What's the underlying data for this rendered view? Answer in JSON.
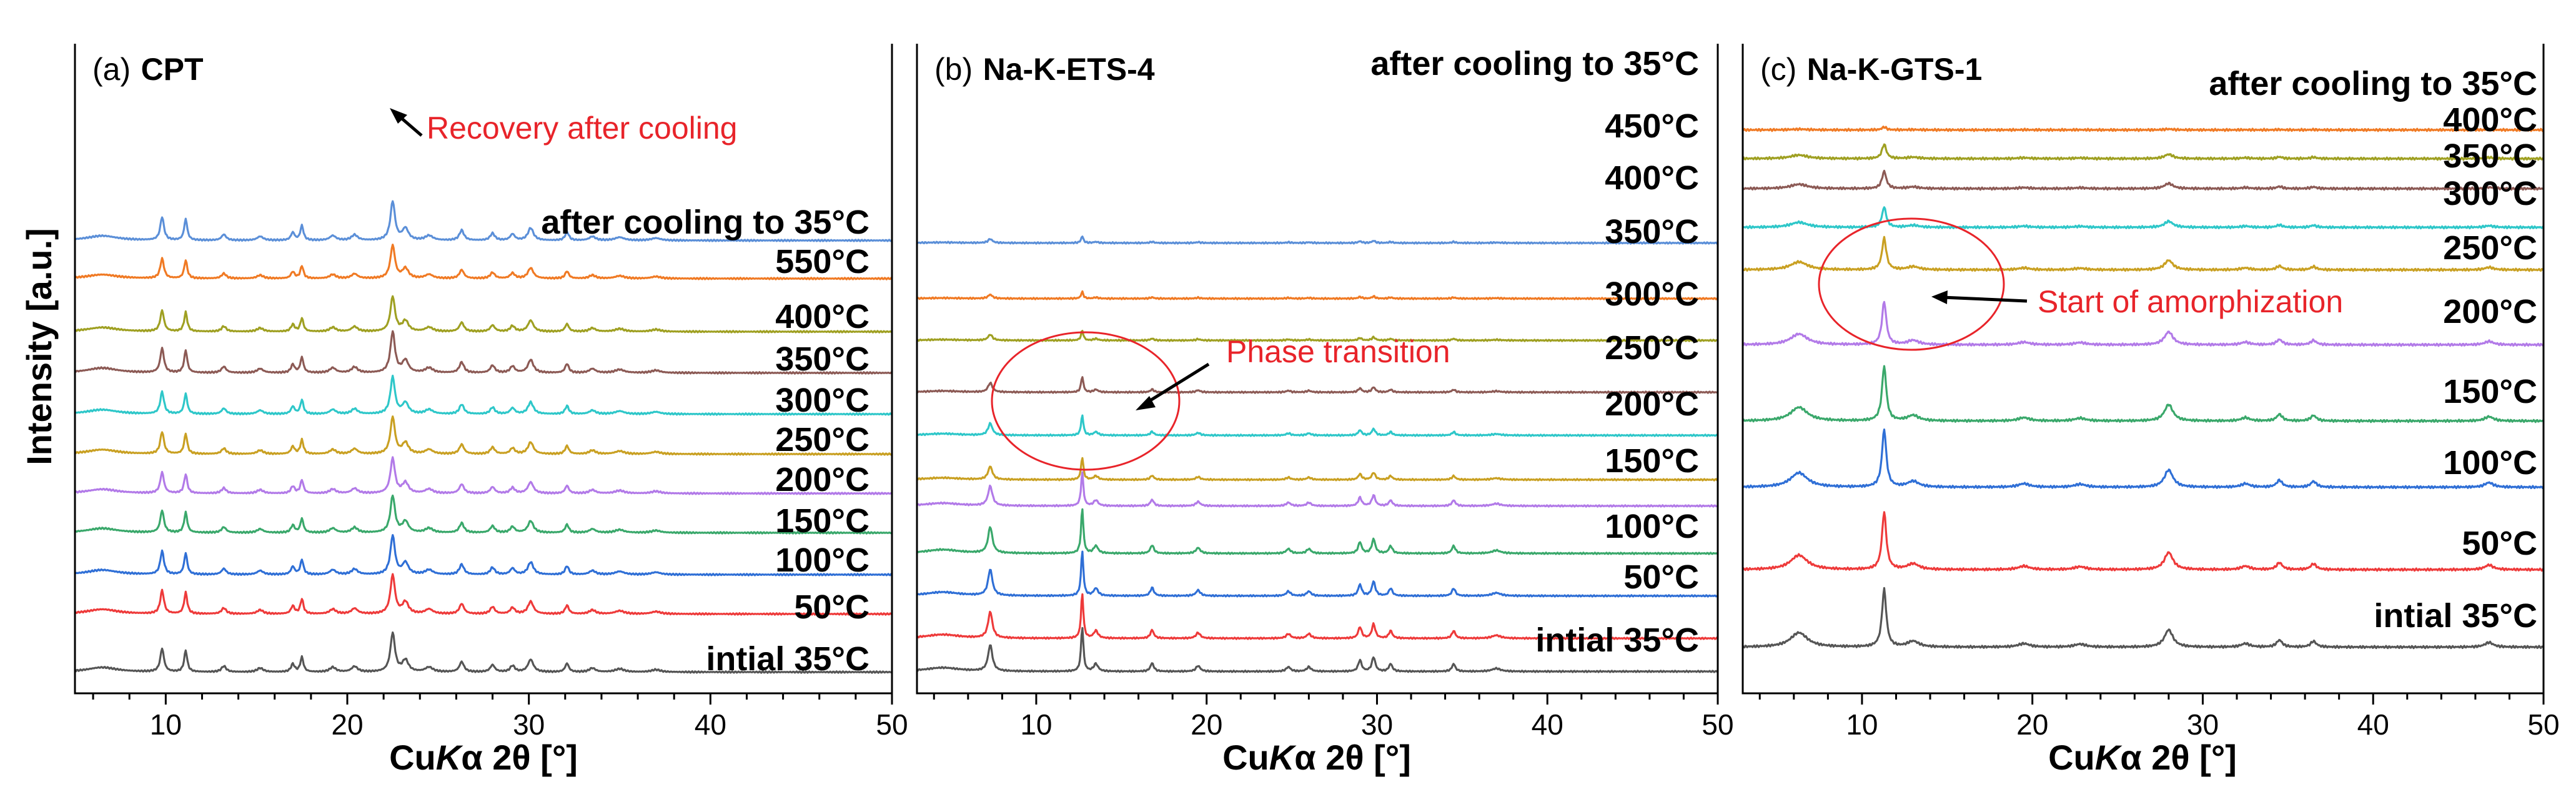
{
  "chart_data": [
    {
      "type": "line",
      "panel_label": "(a)",
      "title": "CPT",
      "xlabel_prefix": "Cu",
      "xlabel_italic": "K",
      "xlabel_suffix": "α 2θ [°]",
      "ylabel": "Intensity [a.u.]",
      "xlim": [
        5,
        50
      ],
      "xticks": [
        "10",
        "20",
        "30",
        "40",
        "50"
      ],
      "peaks": [
        [
          6.5,
          0.12,
          1.0
        ],
        [
          9.8,
          0.6,
          0.12
        ],
        [
          11.1,
          0.55,
          0.1
        ],
        [
          13.2,
          0.15,
          0.15
        ],
        [
          15.2,
          0.1,
          0.2
        ],
        [
          17.0,
          0.2,
          0.12
        ],
        [
          17.5,
          0.38,
          0.1
        ],
        [
          19.2,
          0.12,
          0.2
        ],
        [
          20.4,
          0.14,
          0.2
        ],
        [
          22.5,
          1.0,
          0.15
        ],
        [
          23.2,
          0.3,
          0.2
        ],
        [
          24.5,
          0.12,
          0.25
        ],
        [
          26.3,
          0.26,
          0.15
        ],
        [
          28.0,
          0.18,
          0.15
        ],
        [
          29.1,
          0.16,
          0.15
        ],
        [
          30.1,
          0.32,
          0.18
        ],
        [
          32.1,
          0.22,
          0.12
        ],
        [
          33.5,
          0.1,
          0.2
        ],
        [
          35.0,
          0.08,
          0.3
        ],
        [
          37.0,
          0.06,
          0.3
        ]
      ],
      "series": [
        {
          "name": "intial 35°C",
          "color": "#555555",
          "scale": 1.0
        },
        {
          "name": "50°C",
          "color": "#ee3a3a",
          "scale": 1.0
        },
        {
          "name": "100°C",
          "color": "#2f6fd6",
          "scale": 1.0
        },
        {
          "name": "150°C",
          "color": "#3aa86b",
          "scale": 0.95
        },
        {
          "name": "200°C",
          "color": "#b27ae8",
          "scale": 0.9
        },
        {
          "name": "250°C",
          "color": "#c9a022",
          "scale": 0.95
        },
        {
          "name": "300°C",
          "color": "#2ec7c9",
          "scale": 0.95
        },
        {
          "name": "350°C",
          "color": "#8c5a55",
          "scale": 1.05
        },
        {
          "name": "400°C",
          "color": "#9fa022",
          "scale": 0.9
        },
        {
          "name": "550°C",
          "color": "#f07a24",
          "scale": 0.85
        },
        {
          "name": "after cooling to 35°C",
          "color": "#5b8fd8",
          "scale": 1.0
        }
      ],
      "annotations": [
        {
          "text": "Recovery after cooling"
        }
      ]
    },
    {
      "type": "line",
      "panel_label": "(b)",
      "title": "Na-K-ETS-4",
      "xlabel_prefix": "Cu",
      "xlabel_italic": "K",
      "xlabel_suffix": "α 2θ [°]",
      "xlim": [
        3,
        50
      ],
      "xticks": [
        "10",
        "20",
        "30",
        "40",
        "50"
      ],
      "peaks": [
        [
          4.5,
          0.1,
          1.2
        ],
        [
          7.3,
          0.7,
          0.15
        ],
        [
          12.7,
          1.2,
          0.08
        ],
        [
          13.5,
          0.2,
          0.15
        ],
        [
          16.8,
          0.22,
          0.12
        ],
        [
          19.5,
          0.15,
          0.15
        ],
        [
          24.8,
          0.12,
          0.15
        ],
        [
          26.0,
          0.12,
          0.15
        ],
        [
          29.0,
          0.3,
          0.12
        ],
        [
          29.8,
          0.38,
          0.12
        ],
        [
          30.8,
          0.2,
          0.12
        ],
        [
          34.5,
          0.2,
          0.12
        ],
        [
          37.0,
          0.08,
          0.3
        ]
      ],
      "series": [
        {
          "name": "intial 35°C",
          "color": "#555555",
          "scale": 1.0
        },
        {
          "name": "50°C",
          "color": "#ee3a3a",
          "scale": 1.0
        },
        {
          "name": "100°C",
          "color": "#2f6fd6",
          "scale": 1.0
        },
        {
          "name": "150°C",
          "color": "#3aa86b",
          "scale": 1.0
        },
        {
          "name": "200°C",
          "color": "#b27ae8",
          "scale": 0.75
        },
        {
          "name": "250°C",
          "color": "#c9a022",
          "scale": 0.5
        },
        {
          "name": "300°C",
          "color": "#2ec7c9",
          "scale": 0.45
        },
        {
          "name": "350°C",
          "color": "#8c5a55",
          "scale": 0.35
        },
        {
          "name": "400°C",
          "color": "#9fa022",
          "scale": 0.22
        },
        {
          "name": "450°C",
          "color": "#f07a24",
          "scale": 0.15
        },
        {
          "name": "after cooling to 35°C",
          "color": "#5b8fd8",
          "scale": 0.15
        }
      ],
      "annotations": [
        {
          "text": "Phase transition"
        }
      ]
    },
    {
      "type": "line",
      "panel_label": "(c)",
      "title": "Na-K-GTS-1",
      "xlabel_prefix": "Cu",
      "xlabel_italic": "K",
      "xlabel_suffix": "α 2θ [°]",
      "xlim": [
        3,
        50
      ],
      "xticks": [
        "10",
        "20",
        "30",
        "40",
        "50"
      ],
      "peaks": [
        [
          6.3,
          0.25,
          0.6
        ],
        [
          11.3,
          1.0,
          0.15
        ],
        [
          13.0,
          0.1,
          0.4
        ],
        [
          19.5,
          0.06,
          0.4
        ],
        [
          22.8,
          0.05,
          0.4
        ],
        [
          28.0,
          0.3,
          0.3
        ],
        [
          32.5,
          0.06,
          0.3
        ],
        [
          34.5,
          0.12,
          0.2
        ],
        [
          36.5,
          0.1,
          0.2
        ],
        [
          46.8,
          0.08,
          0.3
        ]
      ],
      "series": [
        {
          "name": "intial 35°C",
          "color": "#555555",
          "scale": 1.0
        },
        {
          "name": "50°C",
          "color": "#ee3a3a",
          "scale": 1.0
        },
        {
          "name": "100°C",
          "color": "#2f6fd6",
          "scale": 1.0
        },
        {
          "name": "150°C",
          "color": "#3aa86b",
          "scale": 0.95
        },
        {
          "name": "200°C",
          "color": "#b27ae8",
          "scale": 0.75
        },
        {
          "name": "250°C",
          "color": "#c9a022",
          "scale": 0.55
        },
        {
          "name": "300°C",
          "color": "#2ec7c9",
          "scale": 0.35
        },
        {
          "name": "350°C",
          "color": "#8c5a55",
          "scale": 0.3
        },
        {
          "name": "400°C",
          "color": "#9fa022",
          "scale": 0.25
        },
        {
          "name": "after cooling to 35°C",
          "color": "#f07a24",
          "scale": 0.05
        }
      ],
      "annotations": [
        {
          "text": "Start of amorphization"
        }
      ]
    }
  ]
}
